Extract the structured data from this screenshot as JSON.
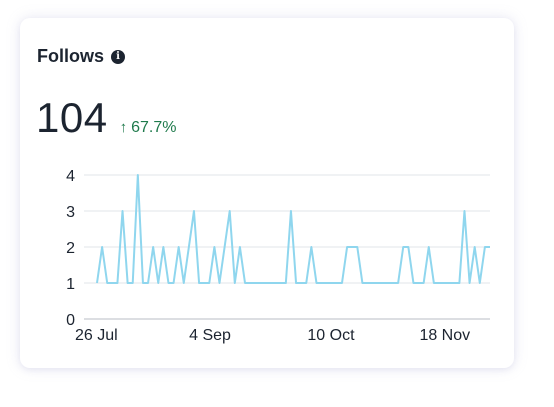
{
  "card": {
    "title": "Follows",
    "info_icon": "info-icon",
    "value": "104",
    "change": "67.7%",
    "change_direction": "up",
    "change_color": "#1f7a4c"
  },
  "chart_data": {
    "type": "line",
    "title": "",
    "xlabel": "",
    "ylabel": "",
    "ylim": [
      0,
      4
    ],
    "yticks": [
      "0",
      "1",
      "2",
      "3",
      "4"
    ],
    "xticks": [
      "26 Jul",
      "4 Sep",
      "10 Oct",
      "18 Nov"
    ],
    "grid": true,
    "line_color": "#8fd6ee",
    "series": [
      {
        "values": [
          1,
          2,
          1,
          1,
          1,
          3,
          1,
          1,
          4,
          1,
          1,
          2,
          1,
          2,
          1,
          1,
          2,
          1,
          2,
          3,
          1,
          1,
          1,
          2,
          1,
          2,
          3,
          1,
          2,
          1,
          1,
          1,
          1,
          1,
          1,
          1,
          1,
          1,
          3,
          1,
          1,
          1,
          2,
          1,
          1,
          1,
          1,
          1,
          1,
          2,
          2,
          2,
          1,
          1,
          1,
          1,
          1,
          1,
          1,
          1,
          2,
          2,
          1,
          1,
          1,
          2,
          1,
          1,
          1,
          1,
          1,
          1,
          3,
          1,
          2,
          1,
          2,
          2
        ]
      }
    ]
  }
}
